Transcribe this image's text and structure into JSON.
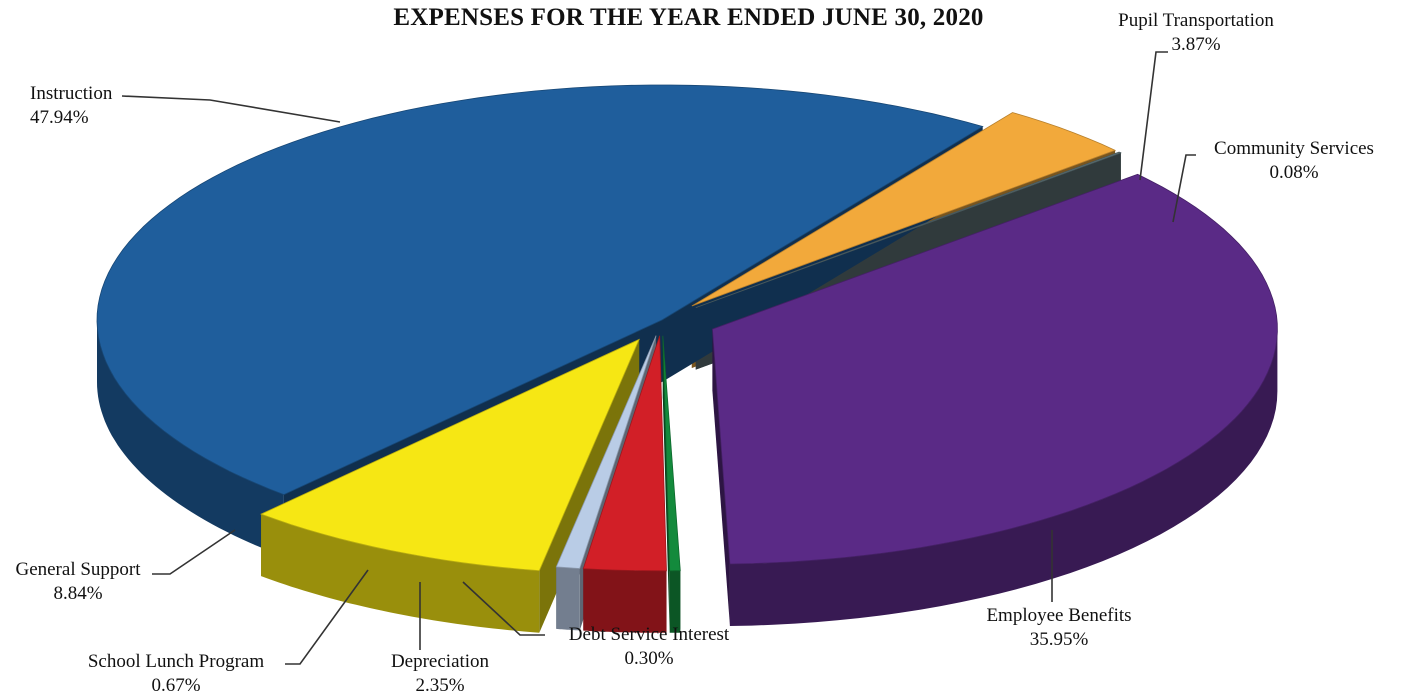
{
  "chart_data": {
    "type": "pie",
    "title": "EXPENSES FOR THE YEAR ENDED JUNE 30, 2020",
    "legend": "none",
    "slices": [
      {
        "label": "Instruction",
        "value": 47.94,
        "display": "47.94%",
        "color": "#1f5e9c"
      },
      {
        "label": "Pupil Transportation",
        "value": 3.87,
        "display": "3.87%",
        "color": "#f2a93b"
      },
      {
        "label": "Community Services",
        "value": 0.08,
        "display": "0.08%",
        "color": "#5f7478"
      },
      {
        "label": "Employee Benefits",
        "value": 35.95,
        "display": "35.95%",
        "color": "#5a2a86"
      },
      {
        "label": "Debt Service Interest",
        "value": 0.3,
        "display": "0.30%",
        "color": "#138a3c"
      },
      {
        "label": "Depreciation",
        "value": 2.35,
        "display": "2.35%",
        "color": "#d21f27"
      },
      {
        "label": "School Lunch Program",
        "value": 0.67,
        "display": "0.67%",
        "color": "#b9cce6"
      },
      {
        "label": "General Support",
        "value": 8.84,
        "display": "8.84%",
        "color": "#f6e714"
      }
    ]
  }
}
